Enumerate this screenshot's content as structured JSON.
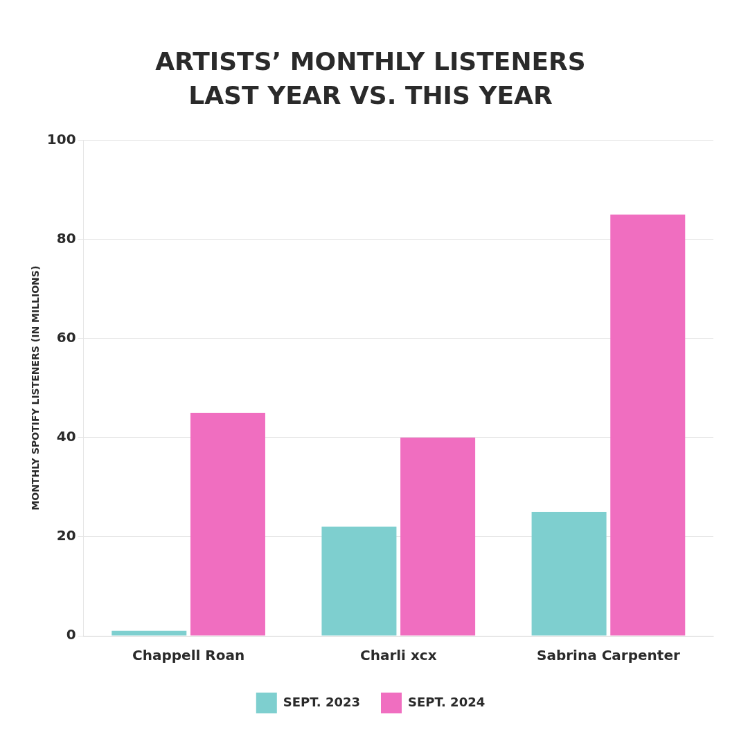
{
  "chart_data": {
    "type": "bar",
    "title": "ARTISTS’ MONTHLY LISTENERS",
    "subtitle": "LAST YEAR VS. THIS YEAR",
    "ylabel": "MONTHLY SPOTIFY LISTENERS (IN MILLIONS)",
    "categories": [
      "Chappell Roan",
      "Charli xcx",
      "Sabrina Carpenter"
    ],
    "series": [
      {
        "name": "SEPT. 2023",
        "color": "#7ECFCF",
        "values": [
          1,
          22,
          25
        ]
      },
      {
        "name": "SEPT. 2024",
        "color": "#F06EC0",
        "values": [
          45,
          40,
          85
        ]
      }
    ],
    "ylim": [
      0,
      100
    ],
    "yticks": [
      0,
      20,
      40,
      60,
      80,
      100
    ],
    "grid": true,
    "legend": "bottom"
  }
}
